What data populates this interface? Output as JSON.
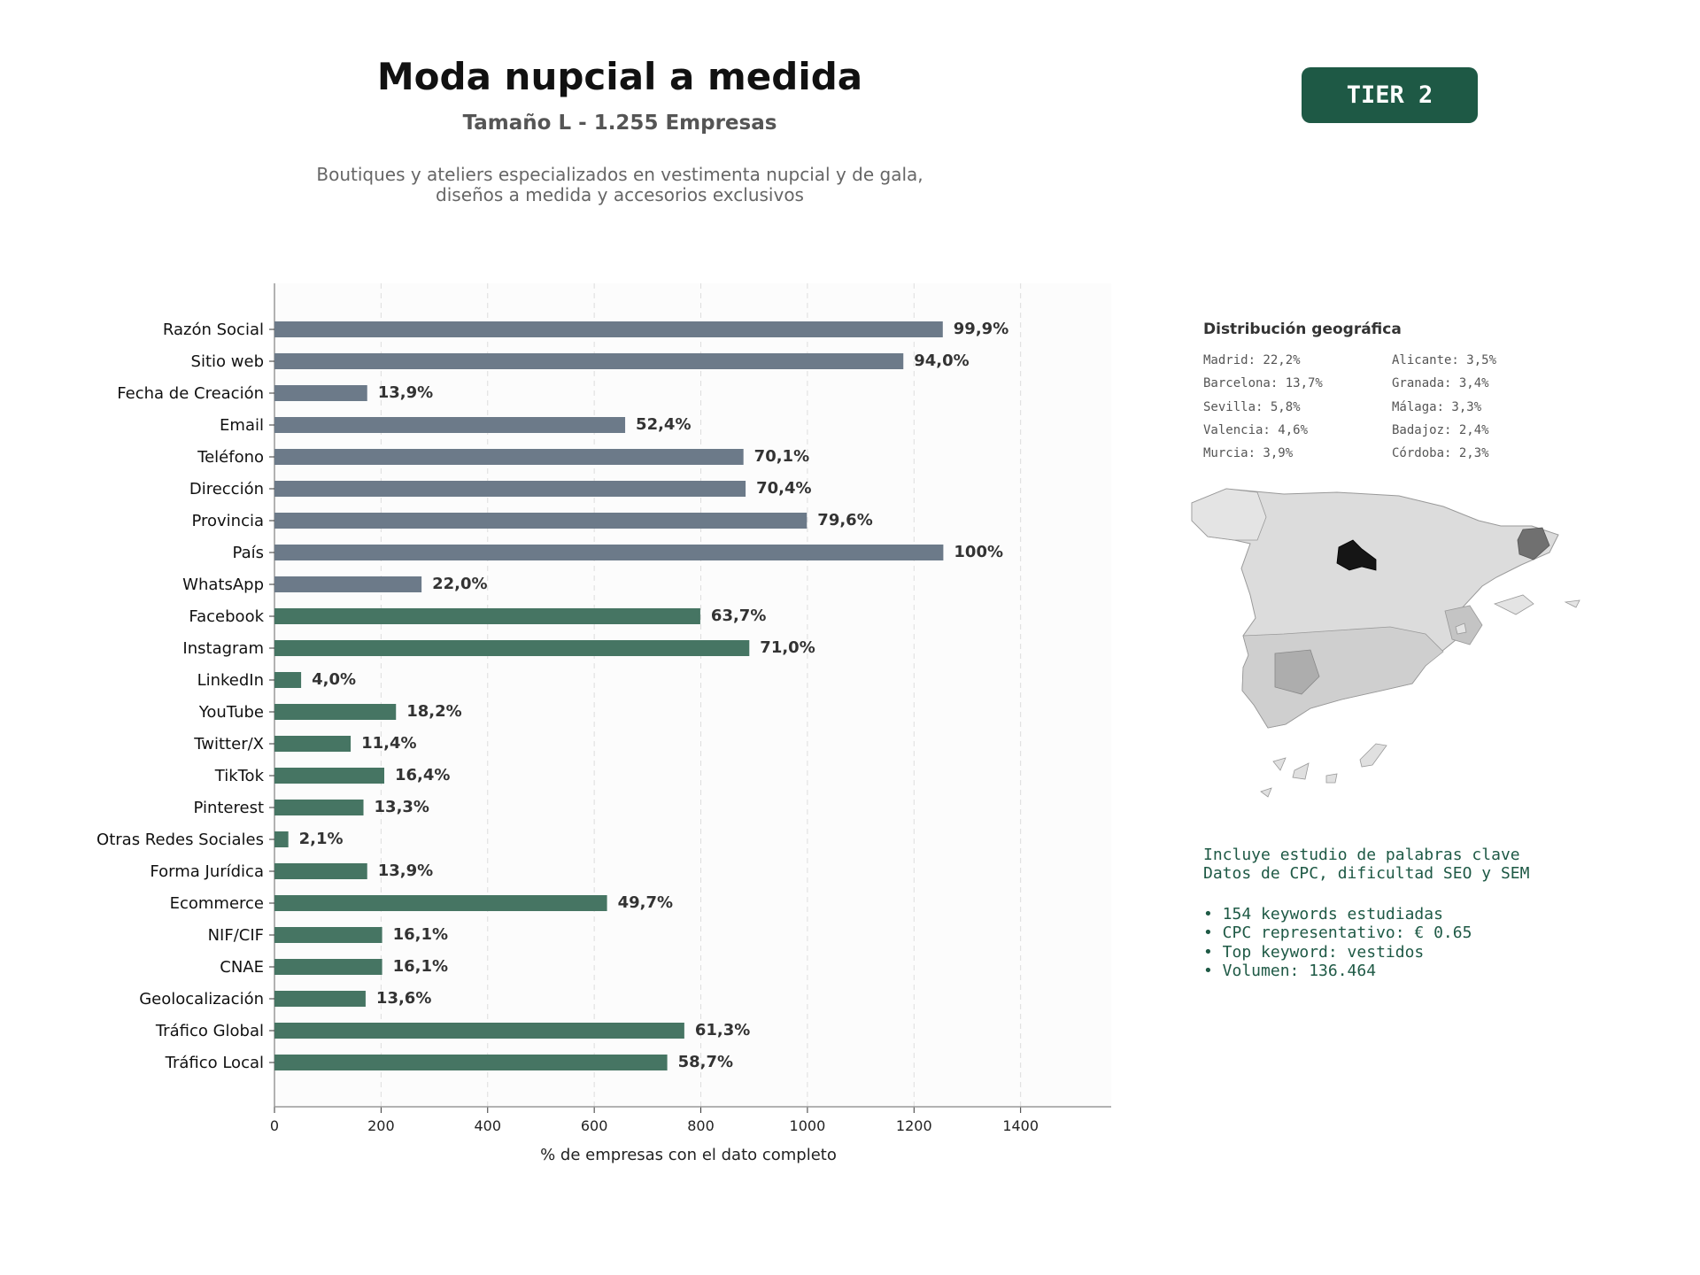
{
  "header": {
    "title": "Moda nupcial a medida",
    "subtitle": "Tamaño L - 1.255 Empresas",
    "description_line1": "Boutiques y ateliers especializados en vestimenta nupcial y de gala,",
    "description_line2": "diseños a medida y accesorios exclusivos"
  },
  "badge": {
    "label": "TIER 2",
    "color": "#1e5945"
  },
  "colors": {
    "basic_bar": "#6c7a89",
    "digital_bar": "#467563",
    "accent_text": "#1e5945"
  },
  "chart_data": {
    "type": "bar",
    "orientation": "horizontal",
    "categories": [
      "Razón Social",
      "Sitio web",
      "Fecha de Creación",
      "Email",
      "Teléfono",
      "Dirección",
      "Provincia",
      "País",
      "WhatsApp",
      "Facebook",
      "Instagram",
      "LinkedIn",
      "YouTube",
      "Twitter/X",
      "TikTok",
      "Pinterest",
      "Otras Redes Sociales",
      "Forma Jurídica",
      "Ecommerce",
      "NIF/CIF",
      "CNAE",
      "Geolocalización",
      "Tráfico Global",
      "Tráfico Local"
    ],
    "values": [
      1254,
      1180,
      174,
      658,
      880,
      884,
      999,
      1255,
      276,
      799,
      891,
      50,
      228,
      143,
      206,
      167,
      26,
      174,
      624,
      202,
      202,
      171,
      769,
      737
    ],
    "labels": [
      "99,9%",
      "94,0%",
      "13,9%",
      "52,4%",
      "70,1%",
      "70,4%",
      "79,6%",
      "100%",
      "22,0%",
      "63,7%",
      "71,0%",
      "4,0%",
      "18,2%",
      "11,4%",
      "16,4%",
      "13,3%",
      "2,1%",
      "13,9%",
      "49,7%",
      "16,1%",
      "16,1%",
      "13,6%",
      "61,3%",
      "58,7%"
    ],
    "groups": [
      "basic",
      "basic",
      "basic",
      "basic",
      "basic",
      "basic",
      "basic",
      "basic",
      "basic",
      "digital",
      "digital",
      "digital",
      "digital",
      "digital",
      "digital",
      "digital",
      "digital",
      "digital",
      "digital",
      "digital",
      "digital",
      "digital",
      "digital",
      "digital"
    ],
    "xlabel": "% de empresas con el dato completo",
    "xticks": [
      0,
      200,
      400,
      600,
      800,
      1000,
      1200,
      1400
    ],
    "xlim": [
      0,
      1570
    ],
    "grid": "vertical dashed"
  },
  "geo": {
    "title": "Distribución geográfica",
    "items_col1": [
      "Madrid: 22,2%",
      "Barcelona: 13,7%",
      "Sevilla: 5,8%",
      "Valencia: 4,6%",
      "Murcia: 3,9%"
    ],
    "items_col2": [
      "Alicante: 3,5%",
      "Granada: 3,4%",
      "Málaga: 3,3%",
      "Badajoz: 2,4%",
      "Córdoba: 2,3%"
    ]
  },
  "keywords": {
    "line1": "Incluye estudio de palabras clave",
    "line2": "Datos de CPC, dificultad SEO y SEM",
    "bullets": [
      "• 154 keywords estudiadas",
      "• CPC representativo: € 0.65",
      "• Top keyword: vestidos",
      "• Volumen: 136.464"
    ]
  }
}
